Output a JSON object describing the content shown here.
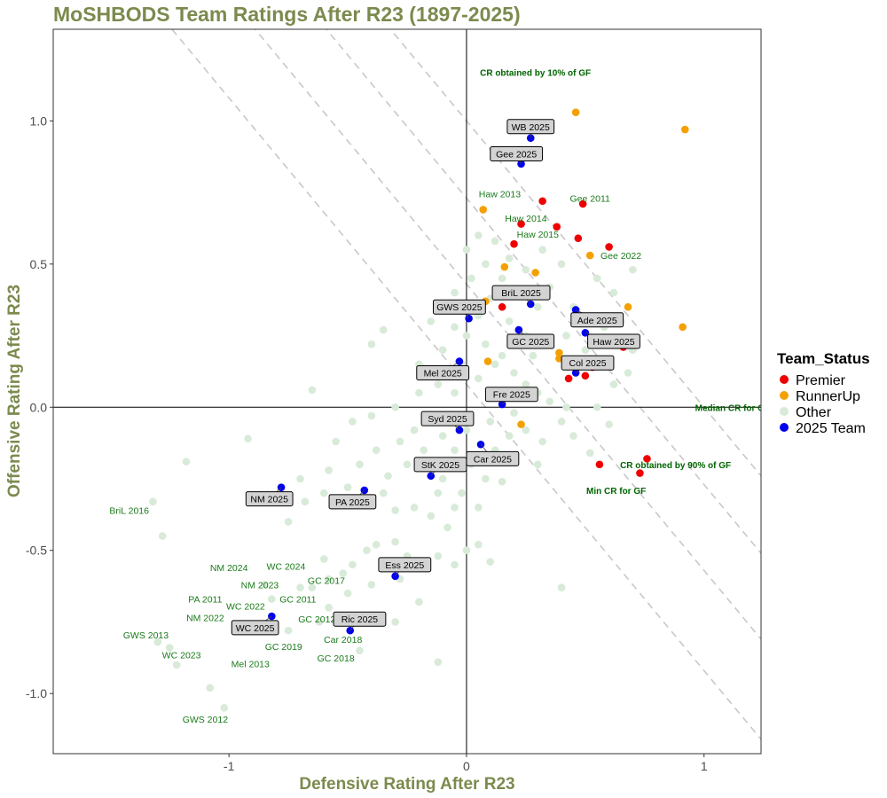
{
  "chart_data": {
    "type": "scatter",
    "title": "MoSHBODS Team Ratings After R23 (1897-2025)",
    "xlabel": "Defensive Rating After R23",
    "ylabel": "Offensive Rating After R23",
    "xlim": [
      -1.74,
      1.24
    ],
    "ylim": [
      -1.21,
      1.32
    ],
    "x_ticks": [
      -1,
      0,
      1
    ],
    "x_tick_labels": [
      "-1",
      "0",
      "1"
    ],
    "y_ticks": [
      -1.0,
      -0.5,
      0.0,
      0.5,
      1.0
    ],
    "y_tick_labels": [
      "-1.0",
      "-0.5",
      "0.0",
      "0.5",
      "1.0"
    ],
    "legend": {
      "title": "Team_Status",
      "placement": "right",
      "entries": [
        {
          "name": "Premier",
          "color": "#ee0000"
        },
        {
          "name": "RunnerUp",
          "color": "#f4a000"
        },
        {
          "name": "Other",
          "color": "#d8ead8"
        },
        {
          "name": "2025 Team",
          "color": "#0000ee"
        }
      ]
    },
    "reference_lines": [
      {
        "intercept": 0.08,
        "slope": -1
      },
      {
        "intercept": 0.43,
        "slope": -1
      },
      {
        "intercept": 0.73,
        "slope": -1
      },
      {
        "intercept": 1.0,
        "slope": -1
      }
    ],
    "reference_labels": [
      {
        "text": "CR obtained by 10% of GF",
        "x": 0.29,
        "y": 1.17
      },
      {
        "text": "Median CR for GF",
        "x": 1.12,
        "y": 0.0
      },
      {
        "text": "CR obtained by 90% of GF",
        "x": 0.88,
        "y": -0.2
      },
      {
        "text": "Min CR for GF",
        "x": 0.63,
        "y": -0.29
      }
    ],
    "series": [
      {
        "name": "Other",
        "color": "#d8ead8",
        "points": [
          [
            -1.32,
            -0.33
          ],
          [
            -1.28,
            -0.45
          ],
          [
            -1.18,
            -0.19
          ],
          [
            -0.92,
            -0.11
          ],
          [
            -1.25,
            -0.84
          ],
          [
            -1.3,
            -0.82
          ],
          [
            -1.22,
            -0.9
          ],
          [
            -1.02,
            -1.05
          ],
          [
            -1.08,
            -0.98
          ],
          [
            -0.75,
            -0.78
          ],
          [
            -0.82,
            -0.67
          ],
          [
            -0.7,
            -0.63
          ],
          [
            -0.65,
            -0.63
          ],
          [
            -0.58,
            -0.6
          ],
          [
            -0.52,
            -0.58
          ],
          [
            -0.6,
            -0.53
          ],
          [
            -0.48,
            -0.55
          ],
          [
            -0.42,
            -0.5
          ],
          [
            -0.38,
            -0.48
          ],
          [
            -0.3,
            -0.47
          ],
          [
            -0.25,
            -0.52
          ],
          [
            -0.18,
            -0.55
          ],
          [
            -0.12,
            -0.52
          ],
          [
            -0.05,
            -0.55
          ],
          [
            0.0,
            -0.5
          ],
          [
            0.05,
            -0.48
          ],
          [
            0.1,
            -0.54
          ],
          [
            -0.08,
            -0.42
          ],
          [
            -0.15,
            -0.38
          ],
          [
            -0.22,
            -0.35
          ],
          [
            -0.3,
            -0.36
          ],
          [
            -0.35,
            -0.3
          ],
          [
            -0.42,
            -0.33
          ],
          [
            -0.5,
            -0.28
          ],
          [
            -0.6,
            -0.3
          ],
          [
            -0.68,
            -0.33
          ],
          [
            -0.75,
            -0.4
          ],
          [
            -0.7,
            -0.25
          ],
          [
            -0.58,
            -0.22
          ],
          [
            -0.45,
            -0.2
          ],
          [
            -0.38,
            -0.15
          ],
          [
            -0.28,
            -0.12
          ],
          [
            -0.22,
            -0.08
          ],
          [
            -0.12,
            -0.05
          ],
          [
            -0.05,
            -0.15
          ],
          [
            0.02,
            -0.2
          ],
          [
            0.08,
            -0.25
          ],
          [
            0.12,
            -0.15
          ],
          [
            0.18,
            -0.1
          ],
          [
            0.25,
            -0.08
          ],
          [
            0.32,
            -0.12
          ],
          [
            0.4,
            -0.05
          ],
          [
            0.45,
            -0.1
          ],
          [
            0.52,
            -0.16
          ],
          [
            0.6,
            -0.06
          ],
          [
            0.4,
            -0.63
          ],
          [
            -0.55,
            -0.12
          ],
          [
            -0.48,
            -0.05
          ],
          [
            -0.4,
            -0.03
          ],
          [
            -0.3,
            0.0
          ],
          [
            -0.2,
            0.05
          ],
          [
            -0.12,
            0.08
          ],
          [
            -0.05,
            0.12
          ],
          [
            0.05,
            0.1
          ],
          [
            0.12,
            0.15
          ],
          [
            0.2,
            0.12
          ],
          [
            0.28,
            0.18
          ],
          [
            0.35,
            0.22
          ],
          [
            0.42,
            0.25
          ],
          [
            0.5,
            0.2
          ],
          [
            0.58,
            0.28
          ],
          [
            0.65,
            0.3
          ],
          [
            0.7,
            0.2
          ],
          [
            0.3,
            0.35
          ],
          [
            0.22,
            0.4
          ],
          [
            0.15,
            0.45
          ],
          [
            0.08,
            0.5
          ],
          [
            0.02,
            0.45
          ],
          [
            -0.05,
            0.4
          ],
          [
            -0.1,
            0.35
          ],
          [
            -0.15,
            0.3
          ],
          [
            -0.05,
            0.28
          ],
          [
            0.05,
            0.32
          ],
          [
            0.1,
            0.38
          ],
          [
            0.18,
            0.3
          ],
          [
            0.25,
            0.25
          ],
          [
            0.35,
            0.42
          ],
          [
            0.45,
            0.35
          ],
          [
            0.55,
            0.45
          ],
          [
            0.62,
            0.4
          ],
          [
            0.7,
            0.48
          ],
          [
            0.4,
            0.5
          ],
          [
            0.32,
            0.55
          ],
          [
            0.25,
            0.48
          ],
          [
            0.18,
            0.52
          ],
          [
            0.12,
            0.58
          ],
          [
            0.05,
            0.6
          ],
          [
            0.0,
            0.55
          ],
          [
            -0.35,
            0.27
          ],
          [
            -0.4,
            0.22
          ],
          [
            -0.65,
            0.06
          ],
          [
            -0.2,
            0.15
          ],
          [
            -0.1,
            0.2
          ],
          [
            0.0,
            0.25
          ],
          [
            0.08,
            0.22
          ],
          [
            0.15,
            0.18
          ],
          [
            0.25,
            0.08
          ],
          [
            0.3,
            0.05
          ],
          [
            0.35,
            0.02
          ],
          [
            0.42,
            0.0
          ],
          [
            0.2,
            -0.02
          ],
          [
            0.1,
            -0.05
          ],
          [
            0.0,
            -0.08
          ],
          [
            -0.1,
            -0.1
          ],
          [
            -0.18,
            -0.15
          ],
          [
            -0.25,
            -0.2
          ],
          [
            -0.33,
            -0.24
          ],
          [
            -0.1,
            -0.25
          ],
          [
            -0.02,
            -0.3
          ],
          [
            0.05,
            -0.35
          ],
          [
            -0.05,
            -0.35
          ],
          [
            -0.12,
            -0.3
          ],
          [
            0.55,
            0.0
          ],
          [
            0.62,
            0.08
          ],
          [
            0.68,
            0.12
          ],
          [
            0.3,
            -0.2
          ],
          [
            0.2,
            -0.18
          ],
          [
            0.15,
            -0.26
          ],
          [
            -0.05,
            0.05
          ],
          [
            -0.02,
            0.15
          ],
          [
            -0.12,
            -0.89
          ],
          [
            -0.45,
            -0.85
          ],
          [
            -0.3,
            -0.75
          ],
          [
            -0.2,
            -0.68
          ],
          [
            -0.58,
            -0.7
          ],
          [
            -0.62,
            -0.75
          ],
          [
            -0.85,
            -0.62
          ],
          [
            -0.5,
            -0.65
          ],
          [
            -0.4,
            -0.62
          ],
          [
            -0.28,
            -0.6
          ]
        ]
      },
      {
        "name": "Premier",
        "color": "#ee0000",
        "points": [
          [
            0.32,
            0.72
          ],
          [
            0.49,
            0.71
          ],
          [
            0.23,
            0.64
          ],
          [
            0.38,
            0.63
          ],
          [
            0.47,
            0.59
          ],
          [
            0.2,
            0.57
          ],
          [
            0.6,
            0.56
          ],
          [
            0.15,
            0.35
          ],
          [
            0.66,
            0.21
          ],
          [
            0.53,
            0.14
          ],
          [
            0.5,
            0.11
          ],
          [
            0.43,
            0.1
          ],
          [
            0.56,
            -0.2
          ],
          [
            0.76,
            -0.18
          ],
          [
            0.73,
            -0.23
          ]
        ]
      },
      {
        "name": "RunnerUp",
        "color": "#f4a000",
        "points": [
          [
            0.46,
            1.03
          ],
          [
            0.92,
            0.97
          ],
          [
            0.07,
            0.69
          ],
          [
            0.52,
            0.53
          ],
          [
            0.29,
            0.47
          ],
          [
            0.16,
            0.49
          ],
          [
            0.08,
            0.37
          ],
          [
            0.68,
            0.35
          ],
          [
            0.91,
            0.28
          ],
          [
            0.39,
            0.19
          ],
          [
            0.39,
            0.17
          ],
          [
            0.09,
            0.16
          ],
          [
            0.23,
            -0.06
          ]
        ]
      },
      {
        "name": "2025 Team",
        "color": "#0000ee",
        "points": [
          [
            0.27,
            0.94
          ],
          [
            0.23,
            0.85
          ],
          [
            0.27,
            0.36
          ],
          [
            0.01,
            0.31
          ],
          [
            0.46,
            0.34
          ],
          [
            0.22,
            0.27
          ],
          [
            0.5,
            0.26
          ],
          [
            -0.03,
            0.16
          ],
          [
            0.46,
            0.12
          ],
          [
            0.15,
            0.01
          ],
          [
            -0.03,
            -0.08
          ],
          [
            0.06,
            -0.13
          ],
          [
            -0.15,
            -0.24
          ],
          [
            -0.78,
            -0.28
          ],
          [
            -0.43,
            -0.29
          ],
          [
            -0.3,
            -0.59
          ],
          [
            -0.82,
            -0.73
          ],
          [
            -0.49,
            -0.78
          ]
        ]
      }
    ],
    "box_labels": [
      {
        "text": "WB 2025",
        "x": 0.27,
        "y": 0.94,
        "ax": 0.27,
        "ay": 0.98
      },
      {
        "text": "Gee 2025",
        "x": 0.23,
        "y": 0.85,
        "ax": 0.21,
        "ay": 0.885
      },
      {
        "text": "BriL 2025",
        "x": 0.27,
        "y": 0.36,
        "ax": 0.23,
        "ay": 0.4
      },
      {
        "text": "GWS 2025",
        "x": 0.01,
        "y": 0.31,
        "ax": -0.03,
        "ay": 0.35
      },
      {
        "text": "Ade 2025",
        "x": 0.46,
        "y": 0.34,
        "ax": 0.55,
        "ay": 0.305
      },
      {
        "text": "GC 2025",
        "x": 0.22,
        "y": 0.27,
        "ax": 0.27,
        "ay": 0.23
      },
      {
        "text": "Haw 2025",
        "x": 0.5,
        "y": 0.26,
        "ax": 0.62,
        "ay": 0.23
      },
      {
        "text": "Mel 2025",
        "x": -0.03,
        "y": 0.16,
        "ax": -0.1,
        "ay": 0.12
      },
      {
        "text": "Col 2025",
        "x": 0.46,
        "y": 0.12,
        "ax": 0.51,
        "ay": 0.155
      },
      {
        "text": "Fre 2025",
        "x": 0.15,
        "y": 0.01,
        "ax": 0.19,
        "ay": 0.045
      },
      {
        "text": "Syd 2025",
        "x": -0.03,
        "y": -0.08,
        "ax": -0.08,
        "ay": -0.04
      },
      {
        "text": "Car 2025",
        "x": 0.06,
        "y": -0.13,
        "ax": 0.11,
        "ay": -0.18
      },
      {
        "text": "StK 2025",
        "x": -0.15,
        "y": -0.24,
        "ax": -0.11,
        "ay": -0.2
      },
      {
        "text": "NM 2025",
        "x": -0.78,
        "y": -0.28,
        "ax": -0.83,
        "ay": -0.32
      },
      {
        "text": "PA 2025",
        "x": -0.43,
        "y": -0.29,
        "ax": -0.48,
        "ay": -0.33
      },
      {
        "text": "Ess 2025",
        "x": -0.3,
        "y": -0.59,
        "ax": -0.26,
        "ay": -0.55
      },
      {
        "text": "WC 2025",
        "x": -0.82,
        "y": -0.73,
        "ax": -0.89,
        "ay": -0.77
      },
      {
        "text": "Ric 2025",
        "x": -0.49,
        "y": -0.78,
        "ax": -0.45,
        "ay": -0.74
      }
    ],
    "history_labels": [
      {
        "text": "Haw 2013",
        "x": 0.14,
        "y": 0.745
      },
      {
        "text": "Gee 2011",
        "x": 0.52,
        "y": 0.73
      },
      {
        "text": "Haw 2014",
        "x": 0.25,
        "y": 0.66
      },
      {
        "text": "Haw 2015",
        "x": 0.3,
        "y": 0.605
      },
      {
        "text": "Gee 2022",
        "x": 0.65,
        "y": 0.53
      },
      {
        "text": "BriL 2016",
        "x": -1.42,
        "y": -0.36
      },
      {
        "text": "NM 2024",
        "x": -1.0,
        "y": -0.56
      },
      {
        "text": "WC 2024",
        "x": -0.76,
        "y": -0.555
      },
      {
        "text": "NM 2023",
        "x": -0.87,
        "y": -0.62
      },
      {
        "text": "GC 2017",
        "x": -0.59,
        "y": -0.605
      },
      {
        "text": "GC 2011",
        "x": -0.71,
        "y": -0.67
      },
      {
        "text": "PA 2011",
        "x": -1.1,
        "y": -0.67
      },
      {
        "text": "WC 2022",
        "x": -0.93,
        "y": -0.695
      },
      {
        "text": "NM 2022",
        "x": -1.1,
        "y": -0.735
      },
      {
        "text": "GC 2012",
        "x": -0.63,
        "y": -0.74
      },
      {
        "text": "GWS 2013",
        "x": -1.35,
        "y": -0.795
      },
      {
        "text": "Car 2018",
        "x": -0.52,
        "y": -0.81
      },
      {
        "text": "GC 2019",
        "x": -0.77,
        "y": -0.835
      },
      {
        "text": "WC 2023",
        "x": -1.2,
        "y": -0.865
      },
      {
        "text": "GC 2018",
        "x": -0.55,
        "y": -0.875
      },
      {
        "text": "Mel 2013",
        "x": -0.91,
        "y": -0.895
      },
      {
        "text": "GWS 2012",
        "x": -1.1,
        "y": -1.09
      }
    ]
  }
}
